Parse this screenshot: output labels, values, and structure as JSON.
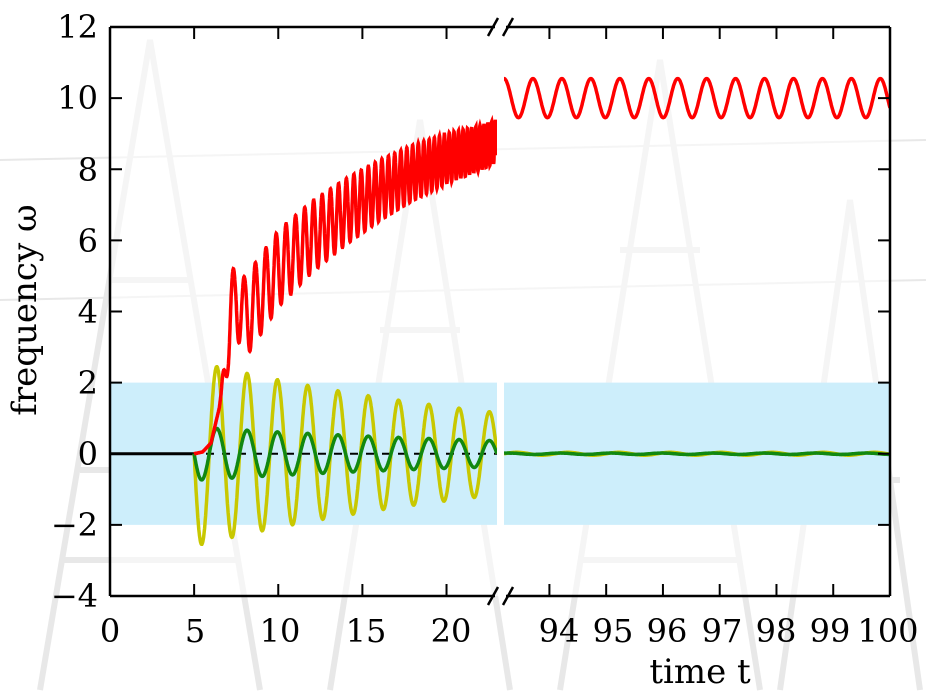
{
  "chart_data": {
    "type": "line",
    "xlabel": "time t",
    "ylabel": "frequency ω",
    "ylim": [
      -4,
      12
    ],
    "yticks": [
      "12",
      "10",
      "8",
      "6",
      "4",
      "2",
      "0",
      "−2",
      "−4"
    ],
    "ytick_values": [
      12,
      10,
      8,
      6,
      4,
      2,
      0,
      -2,
      -4
    ],
    "x_axis_broken": true,
    "segments": [
      {
        "xlim": [
          0,
          23
        ],
        "xticks": [
          "0",
          "5",
          "10",
          "15",
          "20"
        ],
        "xtick_values": [
          0,
          5,
          10,
          15,
          20
        ]
      },
      {
        "xlim": [
          93.2,
          100
        ],
        "xticks": [
          "94",
          "95",
          "96",
          "97",
          "98",
          "99",
          "100"
        ],
        "xtick_values": [
          94,
          95,
          96,
          97,
          98,
          99,
          100
        ]
      }
    ],
    "band": {
      "ymin": -2,
      "ymax": 2,
      "color": "#cdeefb"
    },
    "grid": false,
    "legend": "none",
    "series": [
      {
        "color": "#ff0000",
        "segment1": {
          "x": [
            5,
            5.5,
            6,
            6.5,
            7,
            7.5,
            8,
            9,
            10,
            12,
            14,
            16,
            18,
            20,
            22,
            23
          ],
          "y": [
            0,
            0.05,
            0.3,
            1.3,
            3.2,
            4.5,
            3.8,
            4.5,
            5.2,
            6.1,
            6.8,
            7.4,
            7.9,
            8.3,
            8.6,
            8.8
          ]
        },
        "segment1_oscillation": {
          "amplitude_start": 1.2,
          "amplitude_end": 0.6,
          "period": 0.72
        },
        "segment2": {
          "mean": 10.0,
          "amplitude": 0.55,
          "period": 0.51
        }
      },
      {
        "color": "#c8c800",
        "segment1": {
          "start": 5,
          "amplitude_start": 2.6,
          "decay": 0.045,
          "period": 1.8
        },
        "segment2": {
          "mean": 0.0,
          "amplitude": 0.04
        }
      },
      {
        "color": "#118811",
        "segment1": {
          "start": 5,
          "amplitude_start": 0.75,
          "decay": 0.04,
          "period": 1.8
        },
        "segment2": {
          "mean": 0.0,
          "amplitude": 0.02
        }
      },
      {
        "color": "#000000",
        "segment1": {
          "x": [
            0,
            5
          ],
          "y": [
            0,
            0
          ]
        }
      }
    ]
  }
}
